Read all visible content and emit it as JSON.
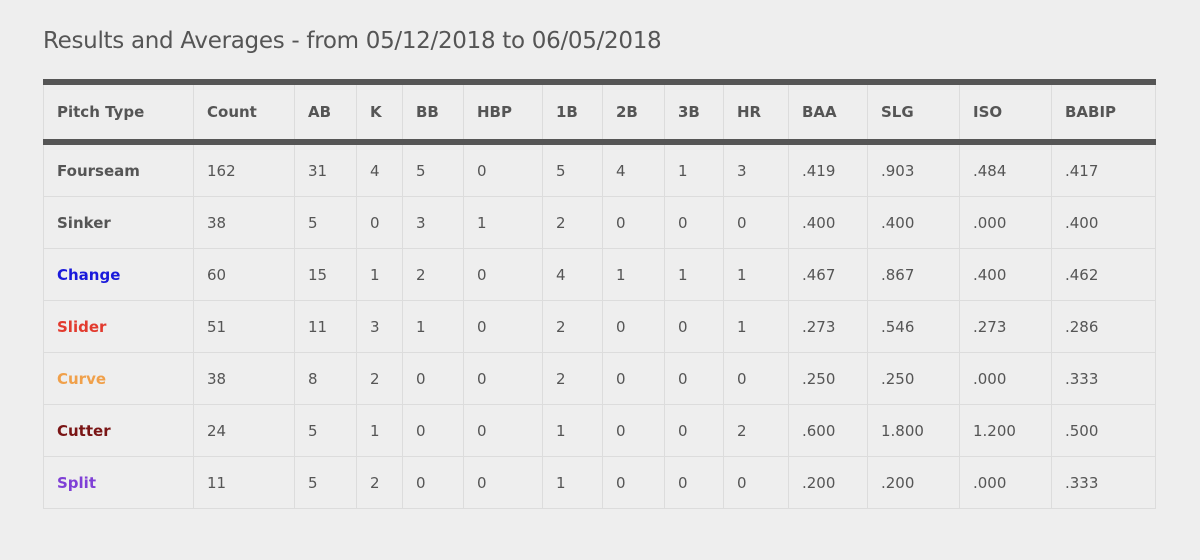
{
  "title": "Results and Averages - from 05/12/2018 to 06/05/2018",
  "table": {
    "columns": [
      "Pitch Type",
      "Count",
      "AB",
      "K",
      "BB",
      "HBP",
      "1B",
      "2B",
      "3B",
      "HR",
      "BAA",
      "SLG",
      "ISO",
      "BABIP"
    ],
    "rows": [
      {
        "pitch": "Fourseam",
        "color": "#555555",
        "values": [
          "162",
          "31",
          "4",
          "5",
          "0",
          "5",
          "4",
          "1",
          "3",
          ".419",
          ".903",
          ".484",
          ".417"
        ]
      },
      {
        "pitch": "Sinker",
        "color": "#555555",
        "values": [
          "38",
          "5",
          "0",
          "3",
          "1",
          "2",
          "0",
          "0",
          "0",
          ".400",
          ".400",
          ".000",
          ".400"
        ]
      },
      {
        "pitch": "Change",
        "color": "#1a1adb",
        "values": [
          "60",
          "15",
          "1",
          "2",
          "0",
          "4",
          "1",
          "1",
          "1",
          ".467",
          ".867",
          ".400",
          ".462"
        ]
      },
      {
        "pitch": "Slider",
        "color": "#e23a2e",
        "values": [
          "51",
          "11",
          "3",
          "1",
          "0",
          "2",
          "0",
          "0",
          "1",
          ".273",
          ".546",
          ".273",
          ".286"
        ]
      },
      {
        "pitch": "Curve",
        "color": "#f0a04a",
        "values": [
          "38",
          "8",
          "2",
          "0",
          "0",
          "2",
          "0",
          "0",
          "0",
          ".250",
          ".250",
          ".000",
          ".333"
        ]
      },
      {
        "pitch": "Cutter",
        "color": "#7a1515",
        "values": [
          "24",
          "5",
          "1",
          "0",
          "0",
          "1",
          "0",
          "0",
          "2",
          ".600",
          "1.800",
          "1.200",
          ".500"
        ]
      },
      {
        "pitch": "Split",
        "color": "#7f3fd6",
        "values": [
          "11",
          "5",
          "2",
          "0",
          "0",
          "1",
          "0",
          "0",
          "0",
          ".200",
          ".200",
          ".000",
          ".333"
        ]
      }
    ]
  }
}
